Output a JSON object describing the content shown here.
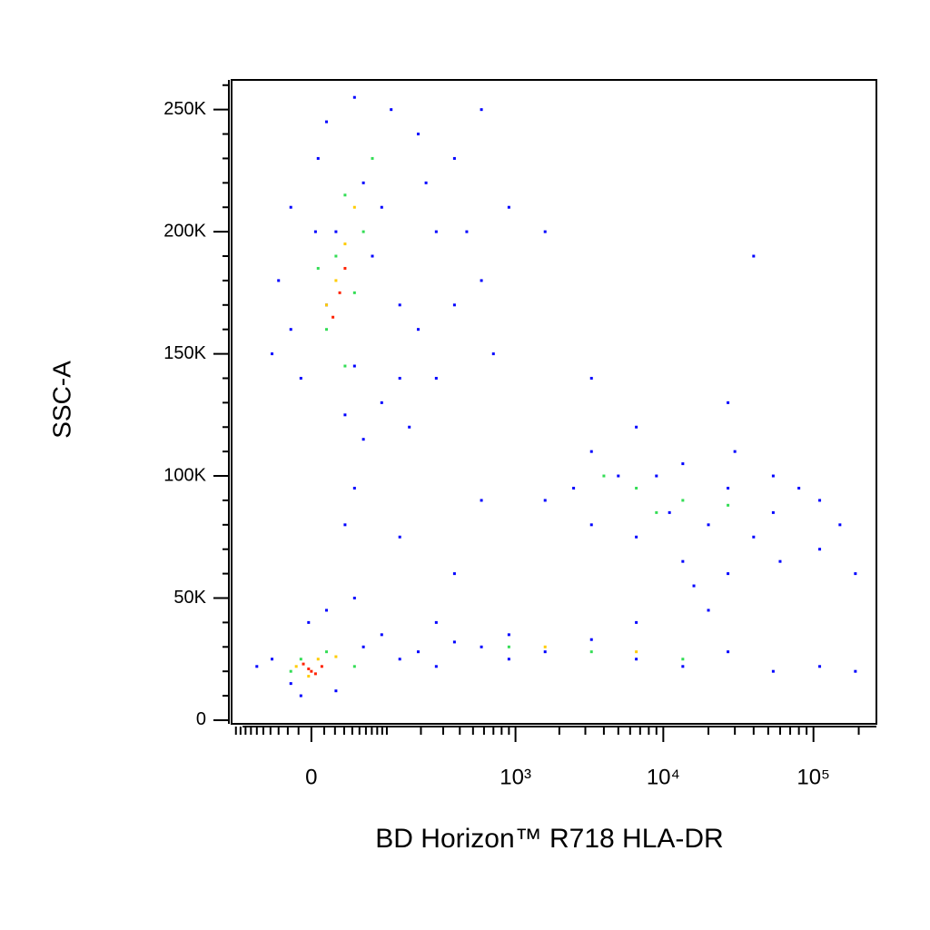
{
  "chart_data": {
    "type": "scatter",
    "x_label": "BD Horizon™ R718 HLA-DR",
    "y_label": "SSC-A",
    "xscale": "symlog",
    "xlinthresh": 46,
    "xlim": [
      -110,
      262144
    ],
    "ylim": [
      -1500,
      262144
    ],
    "xticks": [
      0,
      {
        "value": 1000,
        "label": "10³"
      },
      {
        "value": 10000,
        "label": "10⁴"
      },
      {
        "value": 100000,
        "label": "10⁵"
      }
    ],
    "xminorticks": [
      -100,
      -90,
      -80,
      -70,
      -60,
      -50,
      -40,
      -30,
      -20,
      -10,
      10,
      20,
      30,
      40,
      50,
      60,
      70,
      80,
      90,
      100,
      200,
      300,
      400,
      500,
      600,
      700,
      800,
      900,
      2000,
      3000,
      4000,
      5000,
      6000,
      7000,
      8000,
      9000,
      20000,
      30000,
      40000,
      50000,
      60000,
      70000,
      80000,
      90000,
      200000
    ],
    "yticks": [
      0,
      {
        "value": 50000,
        "label": "50K"
      },
      {
        "value": 100000,
        "label": "100K"
      },
      {
        "value": 150000,
        "label": "150K"
      },
      {
        "value": 200000,
        "label": "200K"
      },
      {
        "value": 250000,
        "label": "250K"
      }
    ],
    "yminorticks": [
      10000,
      20000,
      30000,
      40000,
      60000,
      70000,
      80000,
      90000,
      110000,
      120000,
      130000,
      140000,
      160000,
      170000,
      180000,
      190000,
      210000,
      220000,
      230000,
      240000,
      260000
    ],
    "series": [
      {
        "color": "#0000ff",
        "x": [
          -17,
          -38,
          5,
          12,
          21,
          43,
          56,
          71,
          89,
          132,
          190,
          265,
          365,
          575,
          900,
          132,
          89,
          31,
          -8,
          -17,
          190,
          365,
          575,
          265,
          56,
          12,
          43,
          110,
          220,
          450,
          1600,
          700,
          160,
          -30,
          3,
          3300,
          6600,
          13500,
          27000,
          54000,
          110000,
          1600,
          3300,
          6600,
          13500,
          27000,
          54000,
          110000,
          190000,
          2500,
          9000,
          20000,
          40000,
          80000,
          16000,
          5000,
          11000,
          30000,
          60000,
          150000,
          -38,
          -60,
          -17,
          -8,
          21,
          56,
          89,
          132,
          190,
          265,
          365,
          575,
          900,
          1600,
          3300,
          6600,
          13500,
          27000,
          54000,
          110000,
          190000,
          12,
          43,
          -2,
          265,
          900,
          6600,
          20000,
          31,
          132,
          575,
          3300,
          27000,
          40000,
          365,
          43
        ],
        "y": [
          160000,
          150000,
          230000,
          245000,
          200000,
          255000,
          220000,
          190000,
          210000,
          170000,
          240000,
          200000,
          230000,
          250000,
          210000,
          140000,
          130000,
          125000,
          140000,
          210000,
          160000,
          170000,
          180000,
          140000,
          115000,
          170000,
          145000,
          250000,
          220000,
          200000,
          200000,
          150000,
          120000,
          180000,
          200000,
          110000,
          120000,
          105000,
          95000,
          85000,
          90000,
          90000,
          80000,
          75000,
          65000,
          60000,
          100000,
          70000,
          60000,
          95000,
          100000,
          80000,
          75000,
          95000,
          55000,
          100000,
          85000,
          110000,
          65000,
          80000,
          25000,
          22000,
          15000,
          10000,
          12000,
          30000,
          35000,
          25000,
          28000,
          22000,
          32000,
          30000,
          25000,
          28000,
          33000,
          25000,
          22000,
          28000,
          20000,
          22000,
          20000,
          45000,
          50000,
          40000,
          40000,
          35000,
          40000,
          45000,
          80000,
          75000,
          90000,
          140000,
          130000,
          190000,
          60000,
          95000
        ]
      },
      {
        "color": "#33dd55",
        "x": [
          21,
          31,
          43,
          12,
          56,
          31,
          71,
          5,
          6600,
          13500,
          9000,
          4000,
          27000,
          -8,
          12,
          -17,
          900,
          3300,
          13500,
          43
        ],
        "y": [
          190000,
          215000,
          175000,
          160000,
          200000,
          145000,
          230000,
          185000,
          95000,
          90000,
          85000,
          100000,
          88000,
          25000,
          28000,
          20000,
          30000,
          28000,
          25000,
          22000
        ]
      },
      {
        "color": "#ffcc00",
        "x": [
          21,
          31,
          12,
          43,
          -2,
          5,
          -12,
          21,
          1600,
          6600
        ],
        "y": [
          180000,
          195000,
          170000,
          210000,
          18000,
          25000,
          22000,
          26000,
          30000,
          28000
        ]
      },
      {
        "color": "#ff2200",
        "x": [
          25,
          31,
          18,
          -2,
          3,
          -6,
          8,
          0
        ],
        "y": [
          175000,
          185000,
          165000,
          21000,
          19000,
          23000,
          22000,
          20000
        ]
      }
    ]
  }
}
